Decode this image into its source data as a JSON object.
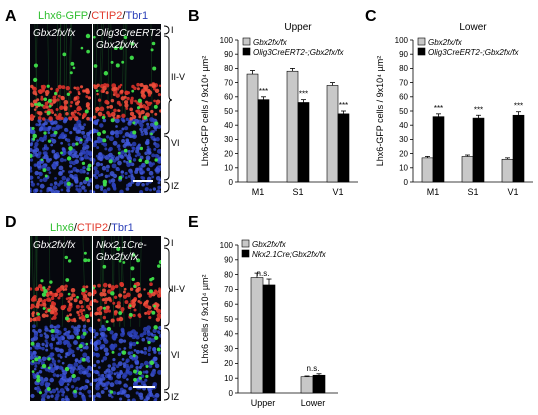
{
  "panels": {
    "a": {
      "letter": "A",
      "stain_title": [
        "Lhx6-GFP",
        "/",
        "CTIP2",
        "/",
        "Tbr1"
      ],
      "left_genotype": "Gbx2fx/fx",
      "right_genotype_line1": "Olig3CreERT2-",
      "right_genotype_line2": "Gbx2fx/fx",
      "layers": [
        "I",
        "II-V",
        "VI",
        "IZ"
      ]
    },
    "d": {
      "letter": "D",
      "stain_title": [
        "Lhx6",
        "/",
        "CTIP2",
        "/",
        "Tbr1"
      ],
      "left_genotype": "Gbx2fx/fx",
      "right_genotype_line1": "Nkx2.1Cre-",
      "right_genotype_line2": "Gbx2fx/fx",
      "layers": [
        "I",
        "II-V",
        "VI",
        "IZ"
      ]
    },
    "b": {
      "letter": "B"
    },
    "c": {
      "letter": "C"
    },
    "e": {
      "letter": "E"
    }
  },
  "colors": {
    "control_bar": "#c8c8c8",
    "mutant_bar": "#000000",
    "green": "#2fbf2f",
    "red": "#e23b2e",
    "blue": "#2b3fb8"
  },
  "chart_data": [
    {
      "id": "B",
      "type": "bar",
      "title": "Upper",
      "ylabel": "Lhx6-GFP cells / 9x10⁴ µm²",
      "xlabel": "",
      "categories": [
        "M1",
        "S1",
        "V1"
      ],
      "ylim": [
        0,
        100
      ],
      "yticks": [
        0,
        10,
        20,
        30,
        40,
        50,
        60,
        70,
        80,
        90,
        100
      ],
      "legend_position": "top-left",
      "series": [
        {
          "name": "Gbx2fx/fx",
          "color": "#c8c8c8",
          "values": [
            76,
            78,
            68
          ],
          "errors": [
            2.5,
            2,
            2
          ]
        },
        {
          "name": "Olig3CreERT2-;Gbx2fx/fx",
          "color": "#000000",
          "values": [
            58,
            56,
            48
          ],
          "errors": [
            2,
            2,
            2
          ]
        }
      ],
      "annotations": [
        "***",
        "***",
        "***"
      ]
    },
    {
      "id": "C",
      "type": "bar",
      "title": "Lower",
      "ylabel": "Lhx6-GFP cells / 9x10⁴ µm²",
      "xlabel": "",
      "categories": [
        "M1",
        "S1",
        "V1"
      ],
      "ylim": [
        0,
        100
      ],
      "yticks": [
        0,
        10,
        20,
        30,
        40,
        50,
        60,
        70,
        80,
        90,
        100
      ],
      "legend_position": "top-left",
      "series": [
        {
          "name": "Gbx2fx/fx",
          "color": "#c8c8c8",
          "values": [
            17,
            18,
            16
          ],
          "errors": [
            1,
            1,
            1
          ]
        },
        {
          "name": "Olig3CreERT2-;Gbx2fx/fx",
          "color": "#000000",
          "values": [
            46,
            45,
            47
          ],
          "errors": [
            2,
            2,
            2.5
          ]
        }
      ],
      "annotations": [
        "***",
        "***",
        "***"
      ]
    },
    {
      "id": "E",
      "type": "bar",
      "title": "",
      "ylabel": "Lhx6 cells / 9x10⁴ µm²",
      "xlabel": "",
      "categories": [
        "Upper",
        "Lower"
      ],
      "ylim": [
        0,
        100
      ],
      "yticks": [
        0,
        10,
        20,
        30,
        40,
        50,
        60,
        70,
        80,
        90,
        100
      ],
      "legend_position": "top-left",
      "series": [
        {
          "name": "Gbx2fx/fx",
          "color": "#c8c8c8",
          "values": [
            78,
            11
          ],
          "errors": [
            3,
            0.5
          ]
        },
        {
          "name": "Nkx2.1Cre;Gbx2fx/fx",
          "color": "#000000",
          "values": [
            73,
            12
          ],
          "errors": [
            4,
            1
          ]
        }
      ],
      "annotations": [
        "n.s.",
        "n.s."
      ]
    }
  ]
}
